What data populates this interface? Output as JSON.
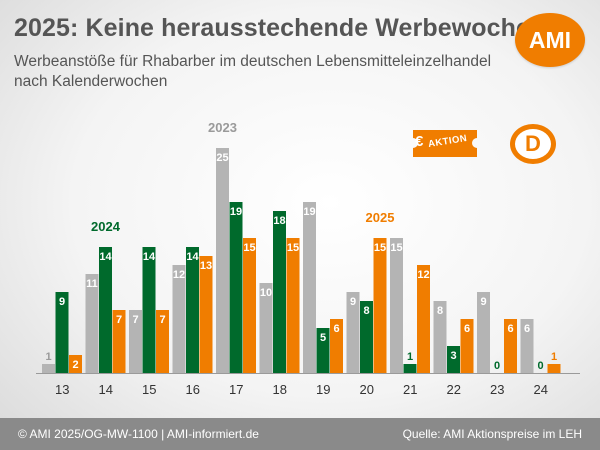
{
  "header": {
    "title": "2025: Keine herausstechende Werbewoche",
    "subtitle": "Werbeanstöße für Rhabarber im deutschen Lebensmitteleinzelhandel nach Kalenderwochen",
    "logo_text": "AMI"
  },
  "badges": {
    "ticket_symbol": "€",
    "ticket_text": "AKTION",
    "country_letter": "D"
  },
  "footer": {
    "left": "© AMI 2025/OG-MW-1100 | AMI-informiert.de",
    "right": "Quelle: AMI Aktionspreise im LEH"
  },
  "colors": {
    "accent": "#f07d00",
    "series_2023": "#b4b4b4",
    "series_2024": "#006a2c",
    "series_2025": "#f07d00",
    "footer_bg": "#8a8a8a"
  },
  "chart_data": {
    "type": "bar",
    "title": "2025: Keine herausstechende Werbewoche",
    "xlabel": "",
    "ylabel": "",
    "categories": [
      "13",
      "14",
      "15",
      "16",
      "17",
      "18",
      "19",
      "20",
      "21",
      "22",
      "23",
      "24"
    ],
    "series": [
      {
        "name": "2023",
        "color": "#b4b4b4",
        "label_color": "#9a9a9a",
        "values": [
          1,
          11,
          7,
          12,
          25,
          10,
          19,
          9,
          15,
          8,
          9,
          6
        ]
      },
      {
        "name": "2024",
        "color": "#006a2c",
        "label_color": "#006a2c",
        "values": [
          9,
          14,
          14,
          14,
          19,
          18,
          5,
          8,
          1,
          3,
          0,
          0
        ]
      },
      {
        "name": "2025",
        "color": "#f07d00",
        "label_color": "#f07d00",
        "values": [
          2,
          7,
          7,
          13,
          15,
          15,
          6,
          15,
          12,
          6,
          6,
          1
        ]
      }
    ],
    "ylim": [
      0,
      25
    ],
    "grid": false,
    "legend": "inline-labels"
  }
}
